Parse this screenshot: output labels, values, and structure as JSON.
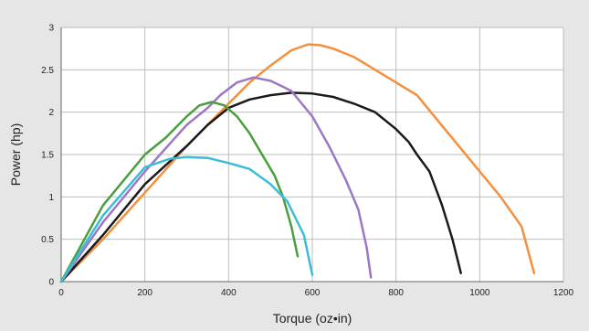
{
  "chart_data": {
    "type": "line",
    "title": "",
    "xlabel": "Torque (oz•in)",
    "ylabel": "Power (hp)",
    "xlim": [
      0,
      1200
    ],
    "ylim": [
      0,
      3
    ],
    "x_ticks": [
      "0",
      "200",
      "400",
      "600",
      "800",
      "1000",
      "1200"
    ],
    "y_ticks": [
      "0",
      "0.5",
      "1",
      "1.5",
      "2",
      "2.5",
      "3"
    ],
    "grid": true,
    "legend": "none",
    "background_color": "#e6e6e6",
    "plot_area_color": "#ffffff",
    "grid_color": "#bdbdbd",
    "series": [
      {
        "color": "#f58f3c",
        "points": [
          [
            0,
            0
          ],
          [
            100,
            0.5
          ],
          [
            200,
            1.05
          ],
          [
            300,
            1.6
          ],
          [
            400,
            2.1
          ],
          [
            450,
            2.35
          ],
          [
            500,
            2.55
          ],
          [
            550,
            2.73
          ],
          [
            590,
            2.8
          ],
          [
            620,
            2.79
          ],
          [
            650,
            2.75
          ],
          [
            700,
            2.65
          ],
          [
            750,
            2.5
          ],
          [
            800,
            2.35
          ],
          [
            850,
            2.2
          ],
          [
            900,
            1.9
          ],
          [
            950,
            1.6
          ],
          [
            1000,
            1.3
          ],
          [
            1050,
            1.0
          ],
          [
            1100,
            0.65
          ],
          [
            1130,
            0.1
          ]
        ]
      },
      {
        "color": "#1a1a1a",
        "points": [
          [
            0,
            0
          ],
          [
            100,
            0.55
          ],
          [
            200,
            1.15
          ],
          [
            300,
            1.6
          ],
          [
            350,
            1.85
          ],
          [
            400,
            2.05
          ],
          [
            450,
            2.15
          ],
          [
            500,
            2.2
          ],
          [
            550,
            2.23
          ],
          [
            600,
            2.22
          ],
          [
            650,
            2.18
          ],
          [
            700,
            2.1
          ],
          [
            750,
            2.0
          ],
          [
            800,
            1.8
          ],
          [
            830,
            1.65
          ],
          [
            850,
            1.5
          ],
          [
            880,
            1.3
          ],
          [
            910,
            0.9
          ],
          [
            935,
            0.5
          ],
          [
            955,
            0.1
          ]
        ]
      },
      {
        "color": "#9b77c7",
        "points": [
          [
            0,
            0
          ],
          [
            100,
            0.7
          ],
          [
            200,
            1.3
          ],
          [
            300,
            1.85
          ],
          [
            350,
            2.05
          ],
          [
            380,
            2.2
          ],
          [
            420,
            2.35
          ],
          [
            460,
            2.41
          ],
          [
            500,
            2.37
          ],
          [
            530,
            2.3
          ],
          [
            550,
            2.25
          ],
          [
            600,
            1.95
          ],
          [
            640,
            1.6
          ],
          [
            680,
            1.2
          ],
          [
            710,
            0.85
          ],
          [
            730,
            0.4
          ],
          [
            740,
            0.05
          ]
        ]
      },
      {
        "color": "#4a9e3e",
        "points": [
          [
            0,
            0
          ],
          [
            50,
            0.45
          ],
          [
            100,
            0.9
          ],
          [
            150,
            1.2
          ],
          [
            200,
            1.5
          ],
          [
            250,
            1.7
          ],
          [
            300,
            1.95
          ],
          [
            330,
            2.08
          ],
          [
            360,
            2.12
          ],
          [
            390,
            2.08
          ],
          [
            420,
            1.95
          ],
          [
            450,
            1.75
          ],
          [
            480,
            1.5
          ],
          [
            510,
            1.25
          ],
          [
            530,
            1.0
          ],
          [
            550,
            0.65
          ],
          [
            565,
            0.3
          ]
        ]
      },
      {
        "color": "#3bbcd8",
        "points": [
          [
            0,
            0
          ],
          [
            100,
            0.78
          ],
          [
            200,
            1.35
          ],
          [
            260,
            1.45
          ],
          [
            300,
            1.47
          ],
          [
            350,
            1.46
          ],
          [
            400,
            1.4
          ],
          [
            450,
            1.33
          ],
          [
            500,
            1.15
          ],
          [
            540,
            0.95
          ],
          [
            580,
            0.55
          ],
          [
            600,
            0.08
          ]
        ]
      }
    ]
  }
}
